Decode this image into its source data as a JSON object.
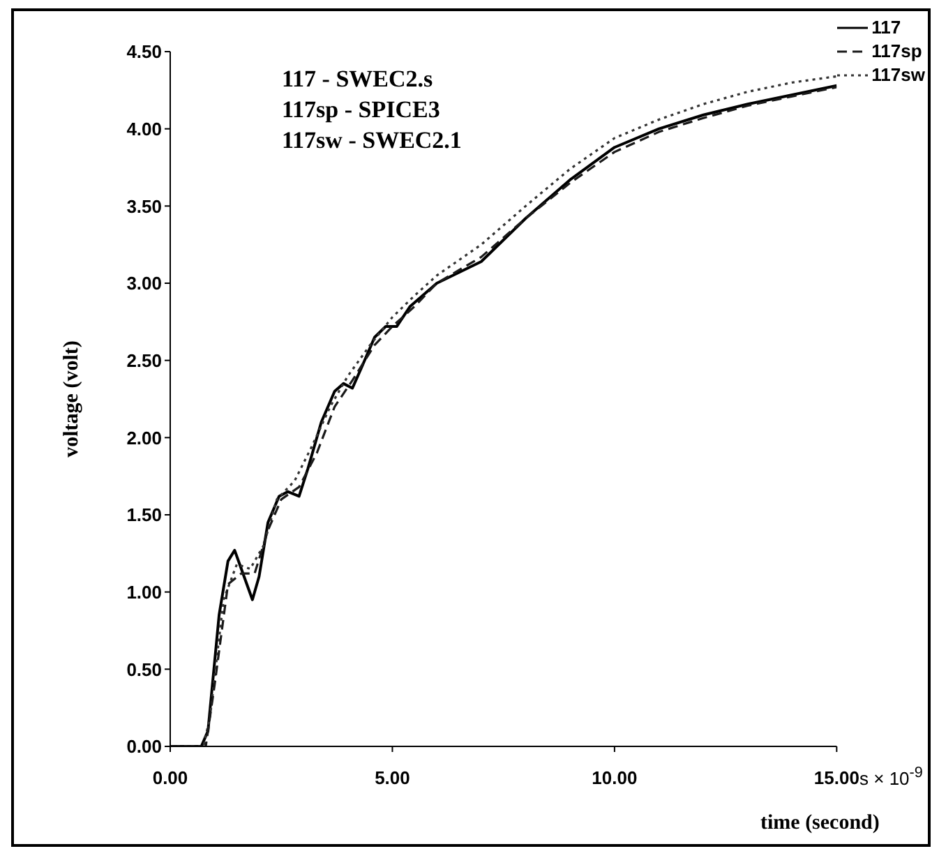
{
  "chart_data": {
    "type": "line",
    "xlabel": "time (second)",
    "ylabel": "voltage (volt)",
    "annotations": [
      "117 - SWEC2.s",
      "117sp - SPICE3",
      "117sw - SWEC2.1",
      "s × 10$^{-9}$"
    ],
    "xlim": [
      0,
      15
    ],
    "xticks": [
      {
        "value": 0,
        "label": "0.00"
      },
      {
        "value": 5,
        "label": "5.00"
      },
      {
        "value": 10,
        "label": "10.00"
      },
      {
        "value": 15,
        "label": "15.00"
      }
    ],
    "ylim": [
      0,
      4.5
    ],
    "yticks": [
      {
        "value": 0,
        "label": "0.00"
      },
      {
        "value": 0.5,
        "label": "0.50"
      },
      {
        "value": 1,
        "label": "1.00"
      },
      {
        "value": 1.5,
        "label": "1.50"
      },
      {
        "value": 2,
        "label": "2.00"
      },
      {
        "value": 2.5,
        "label": "2.50"
      },
      {
        "value": 3,
        "label": "3.00"
      },
      {
        "value": 3.5,
        "label": "3.50"
      },
      {
        "value": 4,
        "label": "4.00"
      },
      {
        "value": 4.5,
        "label": "4.50"
      }
    ],
    "legend": "top right",
    "marker": "none",
    "series": [
      {
        "name": "117",
        "color": "#000000",
        "line_style": "solid",
        "x": [
          0,
          0.7,
          0.85,
          1.1,
          1.3,
          1.45,
          1.6,
          1.85,
          2.0,
          2.2,
          2.45,
          2.65,
          2.9,
          3.1,
          3.4,
          3.7,
          3.9,
          4.1,
          4.3,
          4.6,
          4.85,
          5.1,
          5.4,
          6,
          7,
          8,
          9,
          10,
          11,
          12,
          13,
          14,
          15
        ],
        "values": [
          0,
          0,
          0.1,
          0.85,
          1.2,
          1.27,
          1.15,
          0.95,
          1.1,
          1.45,
          1.62,
          1.65,
          1.62,
          1.8,
          2.1,
          2.3,
          2.35,
          2.32,
          2.45,
          2.65,
          2.72,
          2.72,
          2.85,
          3.0,
          3.14,
          3.42,
          3.67,
          3.88,
          4.0,
          4.09,
          4.16,
          4.22,
          4.28
        ]
      },
      {
        "name": "117sw",
        "color": "#333333",
        "line_style": "dotted",
        "x": [
          0,
          0.75,
          0.9,
          1.2,
          1.5,
          1.8,
          2.1,
          2.4,
          2.8,
          3.2,
          3.6,
          4,
          4.5,
          5,
          5.5,
          6,
          7,
          8,
          9,
          10,
          11,
          12,
          13,
          14,
          15
        ],
        "values": [
          0,
          0,
          0.2,
          0.95,
          1.18,
          1.15,
          1.3,
          1.6,
          1.72,
          1.95,
          2.2,
          2.4,
          2.6,
          2.78,
          2.92,
          3.05,
          3.25,
          3.5,
          3.74,
          3.94,
          4.06,
          4.16,
          4.24,
          4.3,
          4.34
        ]
      },
      {
        "name": "117sp",
        "color": "#1a1a1a",
        "line_style": "dashed",
        "x": [
          0,
          0.8,
          1.0,
          1.3,
          1.6,
          1.9,
          2.2,
          2.5,
          2.9,
          3.3,
          3.7,
          4.1,
          4.6,
          5,
          5.5,
          6,
          7,
          8,
          9,
          10,
          11,
          12,
          13,
          14,
          15
        ],
        "values": [
          0,
          0,
          0.4,
          1.05,
          1.12,
          1.12,
          1.4,
          1.6,
          1.68,
          1.9,
          2.2,
          2.37,
          2.6,
          2.72,
          2.85,
          3.0,
          3.17,
          3.42,
          3.65,
          3.85,
          3.98,
          4.07,
          4.15,
          4.21,
          4.27
        ]
      }
    ]
  }
}
